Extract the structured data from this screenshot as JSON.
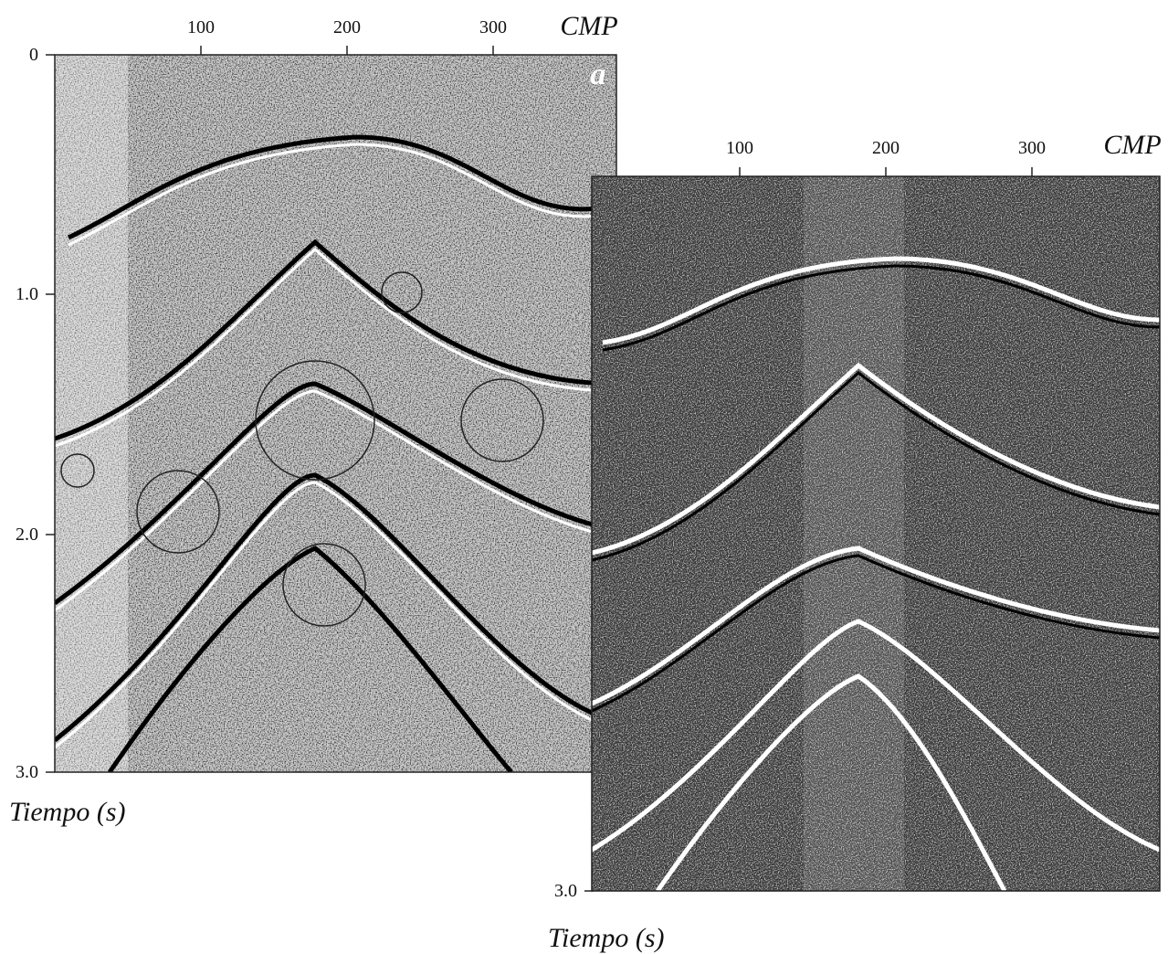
{
  "panels": [
    {
      "letter": "a",
      "x_label": "CMP",
      "x_ticks": [
        "100",
        "200",
        "300"
      ],
      "y_ticks": [
        "0",
        "1.0",
        "2.0",
        "3.0"
      ],
      "y_label": "Tiempo (s)"
    },
    {
      "x_label": "CMP",
      "x_ticks": [
        "100",
        "200",
        "300"
      ],
      "y_ticks": [
        "3.0"
      ],
      "y_label": "Tiempo (s)"
    }
  ]
}
